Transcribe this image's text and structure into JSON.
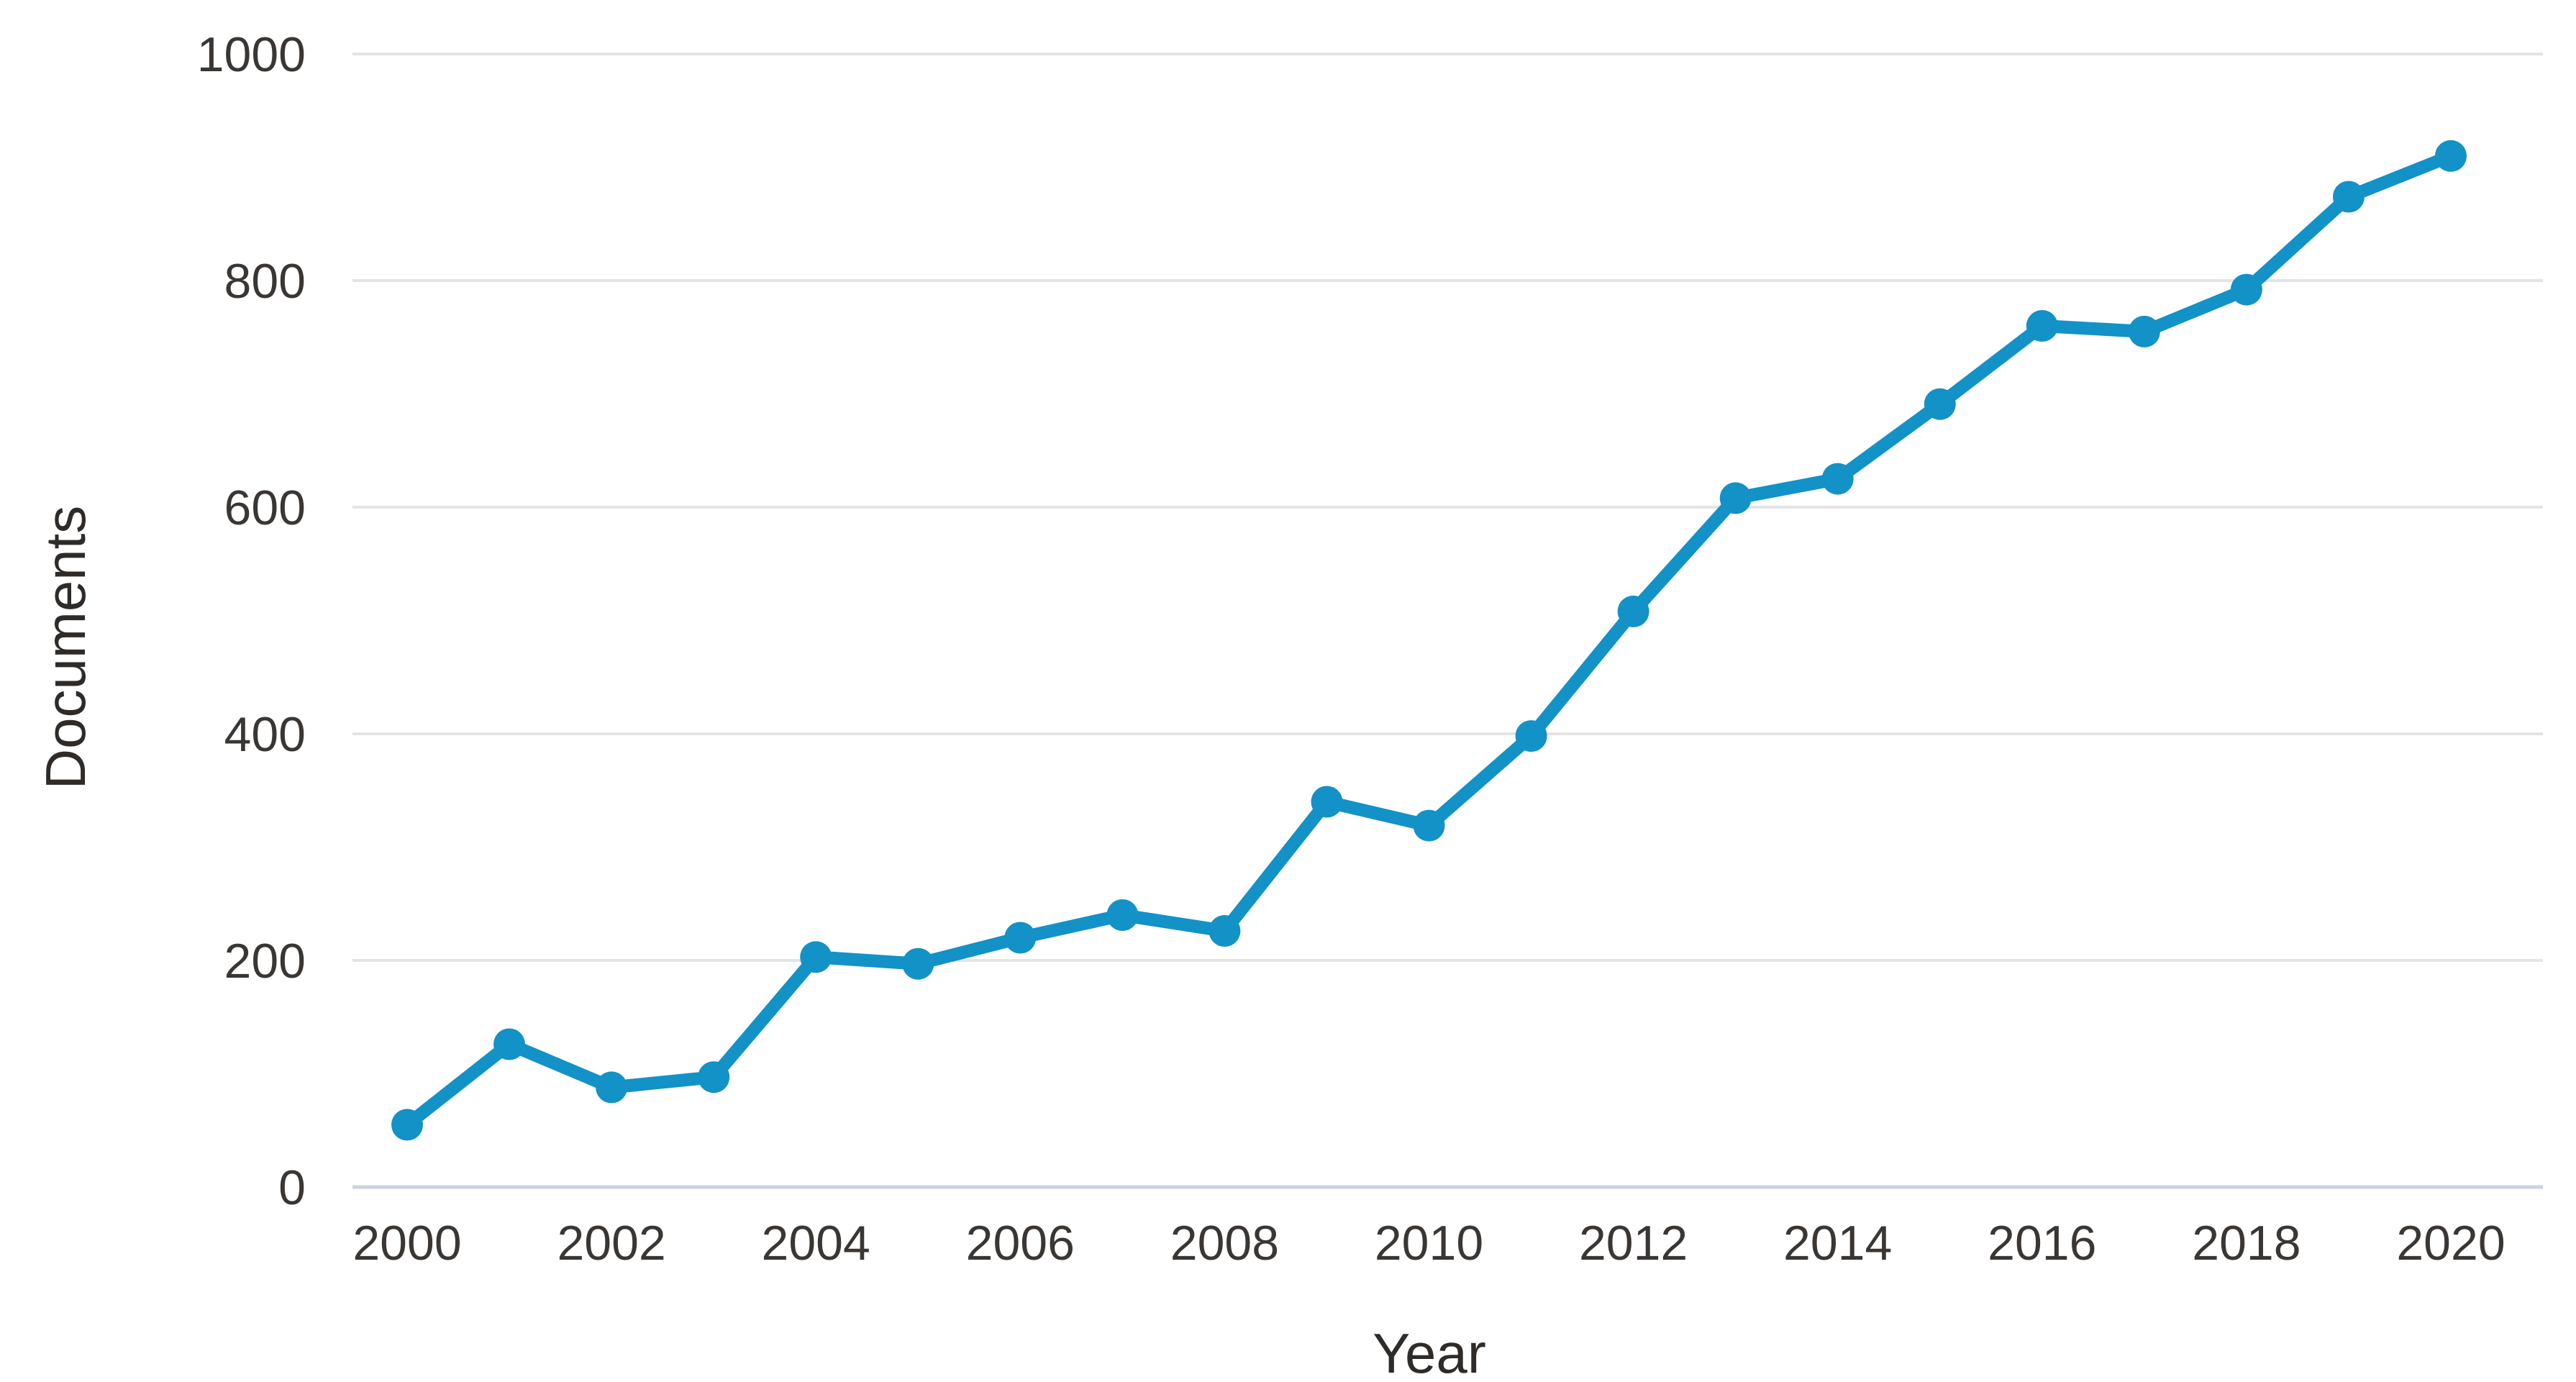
{
  "chart_data": {
    "type": "line",
    "title": "",
    "xlabel": "Year",
    "ylabel": "Documents",
    "x": [
      2000,
      2001,
      2002,
      2003,
      2004,
      2005,
      2006,
      2007,
      2008,
      2009,
      2010,
      2011,
      2012,
      2013,
      2014,
      2015,
      2016,
      2017,
      2018,
      2019,
      2020
    ],
    "series": [
      {
        "name": "Documents",
        "values": [
          55,
          126,
          88,
          97,
          203,
          197,
          220,
          240,
          226,
          340,
          319,
          398,
          508,
          608,
          625,
          691,
          760,
          755,
          792,
          874,
          910
        ]
      }
    ],
    "xticks": [
      2000,
      2002,
      2004,
      2006,
      2008,
      2010,
      2012,
      2014,
      2016,
      2018,
      2020
    ],
    "yticks": [
      0,
      200,
      400,
      600,
      800,
      1000
    ],
    "ylim": [
      0,
      1000
    ],
    "xlim": [
      2000,
      2020
    ],
    "grid": "horizontal",
    "legend": "none",
    "marker": "circle",
    "colors": {
      "line": "#1292c6",
      "marker": "#1292c6",
      "gridline": "#e4e4e4",
      "zero_axis_line": "#c9d2e6",
      "tick_text": "#3a3633",
      "axis_title_text": "#2e2b28",
      "background": "#ffffff"
    }
  }
}
